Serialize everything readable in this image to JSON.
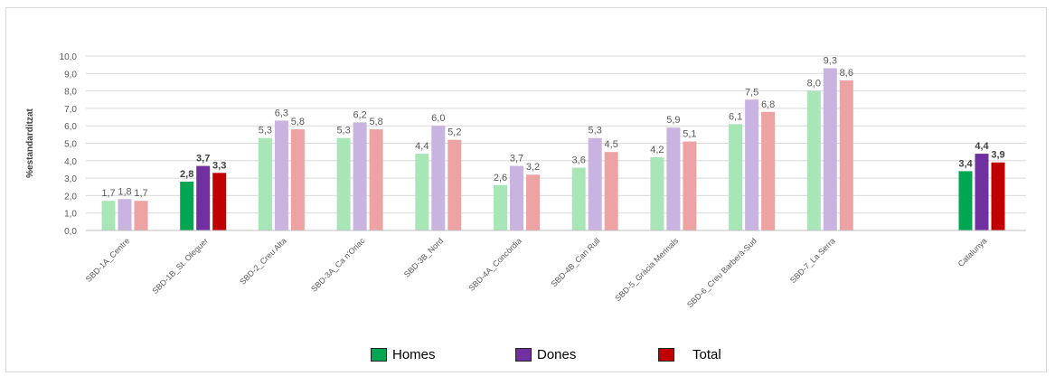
{
  "chart_data": {
    "type": "bar",
    "ylabel": "%estandarditzat",
    "ylim": [
      0,
      10
    ],
    "yticks": [
      "0,0",
      "1,0",
      "2,0",
      "3,0",
      "4,0",
      "5,0",
      "6,0",
      "7,0",
      "8,0",
      "9,0",
      "10,0"
    ],
    "grid": true,
    "legend_position": "bottom",
    "categories": [
      "SBD-1A_Centre",
      "SBD-1B_St. Oleguer",
      "SBD-2_Creu Alta",
      "SBD-3A_Ca n'Oriac",
      "SBD-3B_Nord",
      "SBD-4A_Concòrdia",
      "SBD-4B_Can Rull",
      "SBD-5_Gràcia Merinals",
      "SBD-6_Creu Barberà-Sud",
      "SBD-7_La Serra",
      "Catalunya"
    ],
    "series": [
      {
        "name": "Homes",
        "values": [
          1.7,
          2.8,
          5.3,
          5.3,
          4.4,
          2.6,
          3.6,
          4.2,
          6.1,
          8.0,
          3.4
        ],
        "labels": [
          "1,7",
          "2,8",
          "5,3",
          "5,3",
          "4,4",
          "2,6",
          "3,6",
          "4,2",
          "6,1",
          "8,0",
          "3,4"
        ],
        "color": "#00a651",
        "light": "#a8e6b8"
      },
      {
        "name": "Dones",
        "values": [
          1.8,
          3.7,
          6.3,
          6.2,
          6.0,
          3.7,
          5.3,
          5.9,
          7.5,
          9.3,
          4.4
        ],
        "labels": [
          "1,8",
          "3,7",
          "6,3",
          "6,2",
          "6,0",
          "3,7",
          "5,3",
          "5,9",
          "7,5",
          "9,3",
          "4,4"
        ],
        "color": "#7030a0",
        "light": "#c9b3e0"
      },
      {
        "name": "Total",
        "values": [
          1.7,
          3.3,
          5.8,
          5.8,
          5.2,
          3.2,
          4.5,
          5.1,
          6.8,
          8.6,
          3.9
        ],
        "labels": [
          "1,7",
          "3,3",
          "5,8",
          "5,8",
          "5,2",
          "3,2",
          "4,5",
          "5,1",
          "6,8",
          "8,6",
          "3,9"
        ],
        "color": "#c00000",
        "light": "#eda3a3"
      }
    ],
    "highlighted_categories": [
      "SBD-1B_St. Oleguer",
      "Catalunya"
    ]
  },
  "colors": {
    "grid": "#d9d9d9",
    "axis_text": "#595959",
    "label_text": "#595959",
    "label_bold": "#404040"
  }
}
